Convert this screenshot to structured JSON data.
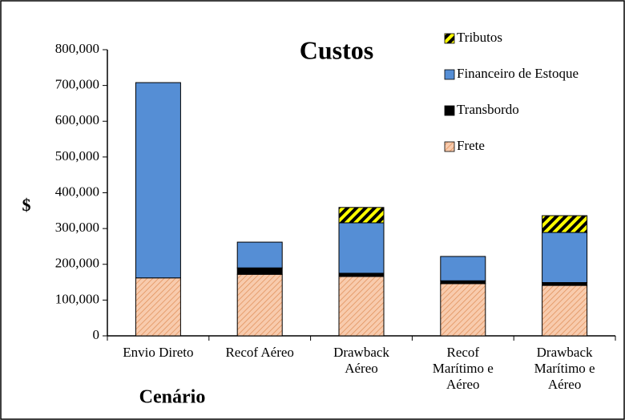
{
  "chart_data": {
    "type": "stacked_bar",
    "title": "Custos",
    "x_label": "Cenário",
    "y_label": "$",
    "categories": [
      "Envio Direto",
      "Recof Aéreo",
      "Drawback Aéreo",
      "Recof Marítimo e Aéreo",
      "Drawback Marítimo e Aéreo"
    ],
    "series": [
      {
        "name": "Frete",
        "color": "#f4b183",
        "values": [
          162000,
          172000,
          166000,
          146000,
          141000
        ]
      },
      {
        "name": "Transbordo",
        "color": "#000000",
        "values": [
          0,
          18000,
          9000,
          8000,
          8000
        ]
      },
      {
        "name": "Financeiro de Estoque",
        "color": "#558ed5",
        "values": [
          546000,
          72000,
          141000,
          68000,
          140000
        ]
      },
      {
        "name": "Tributos",
        "color": "#ffff00",
        "values": [
          0,
          0,
          43000,
          0,
          47000
        ]
      }
    ],
    "ylim": [
      0,
      800000
    ],
    "yticks": [
      0,
      {
        "value": 100000,
        "label": "100,000"
      },
      {
        "value": 200000,
        "label": "200,000"
      },
      {
        "value": 300000,
        "label": "300,000"
      },
      {
        "value": 400000,
        "label": "400,000"
      },
      {
        "value": 500000,
        "label": "500,000"
      },
      {
        "value": 600000,
        "label": "600,000"
      },
      {
        "value": 700000,
        "label": "700,000"
      },
      {
        "value": 800000,
        "label": "800,000"
      }
    ],
    "grid": false
  }
}
